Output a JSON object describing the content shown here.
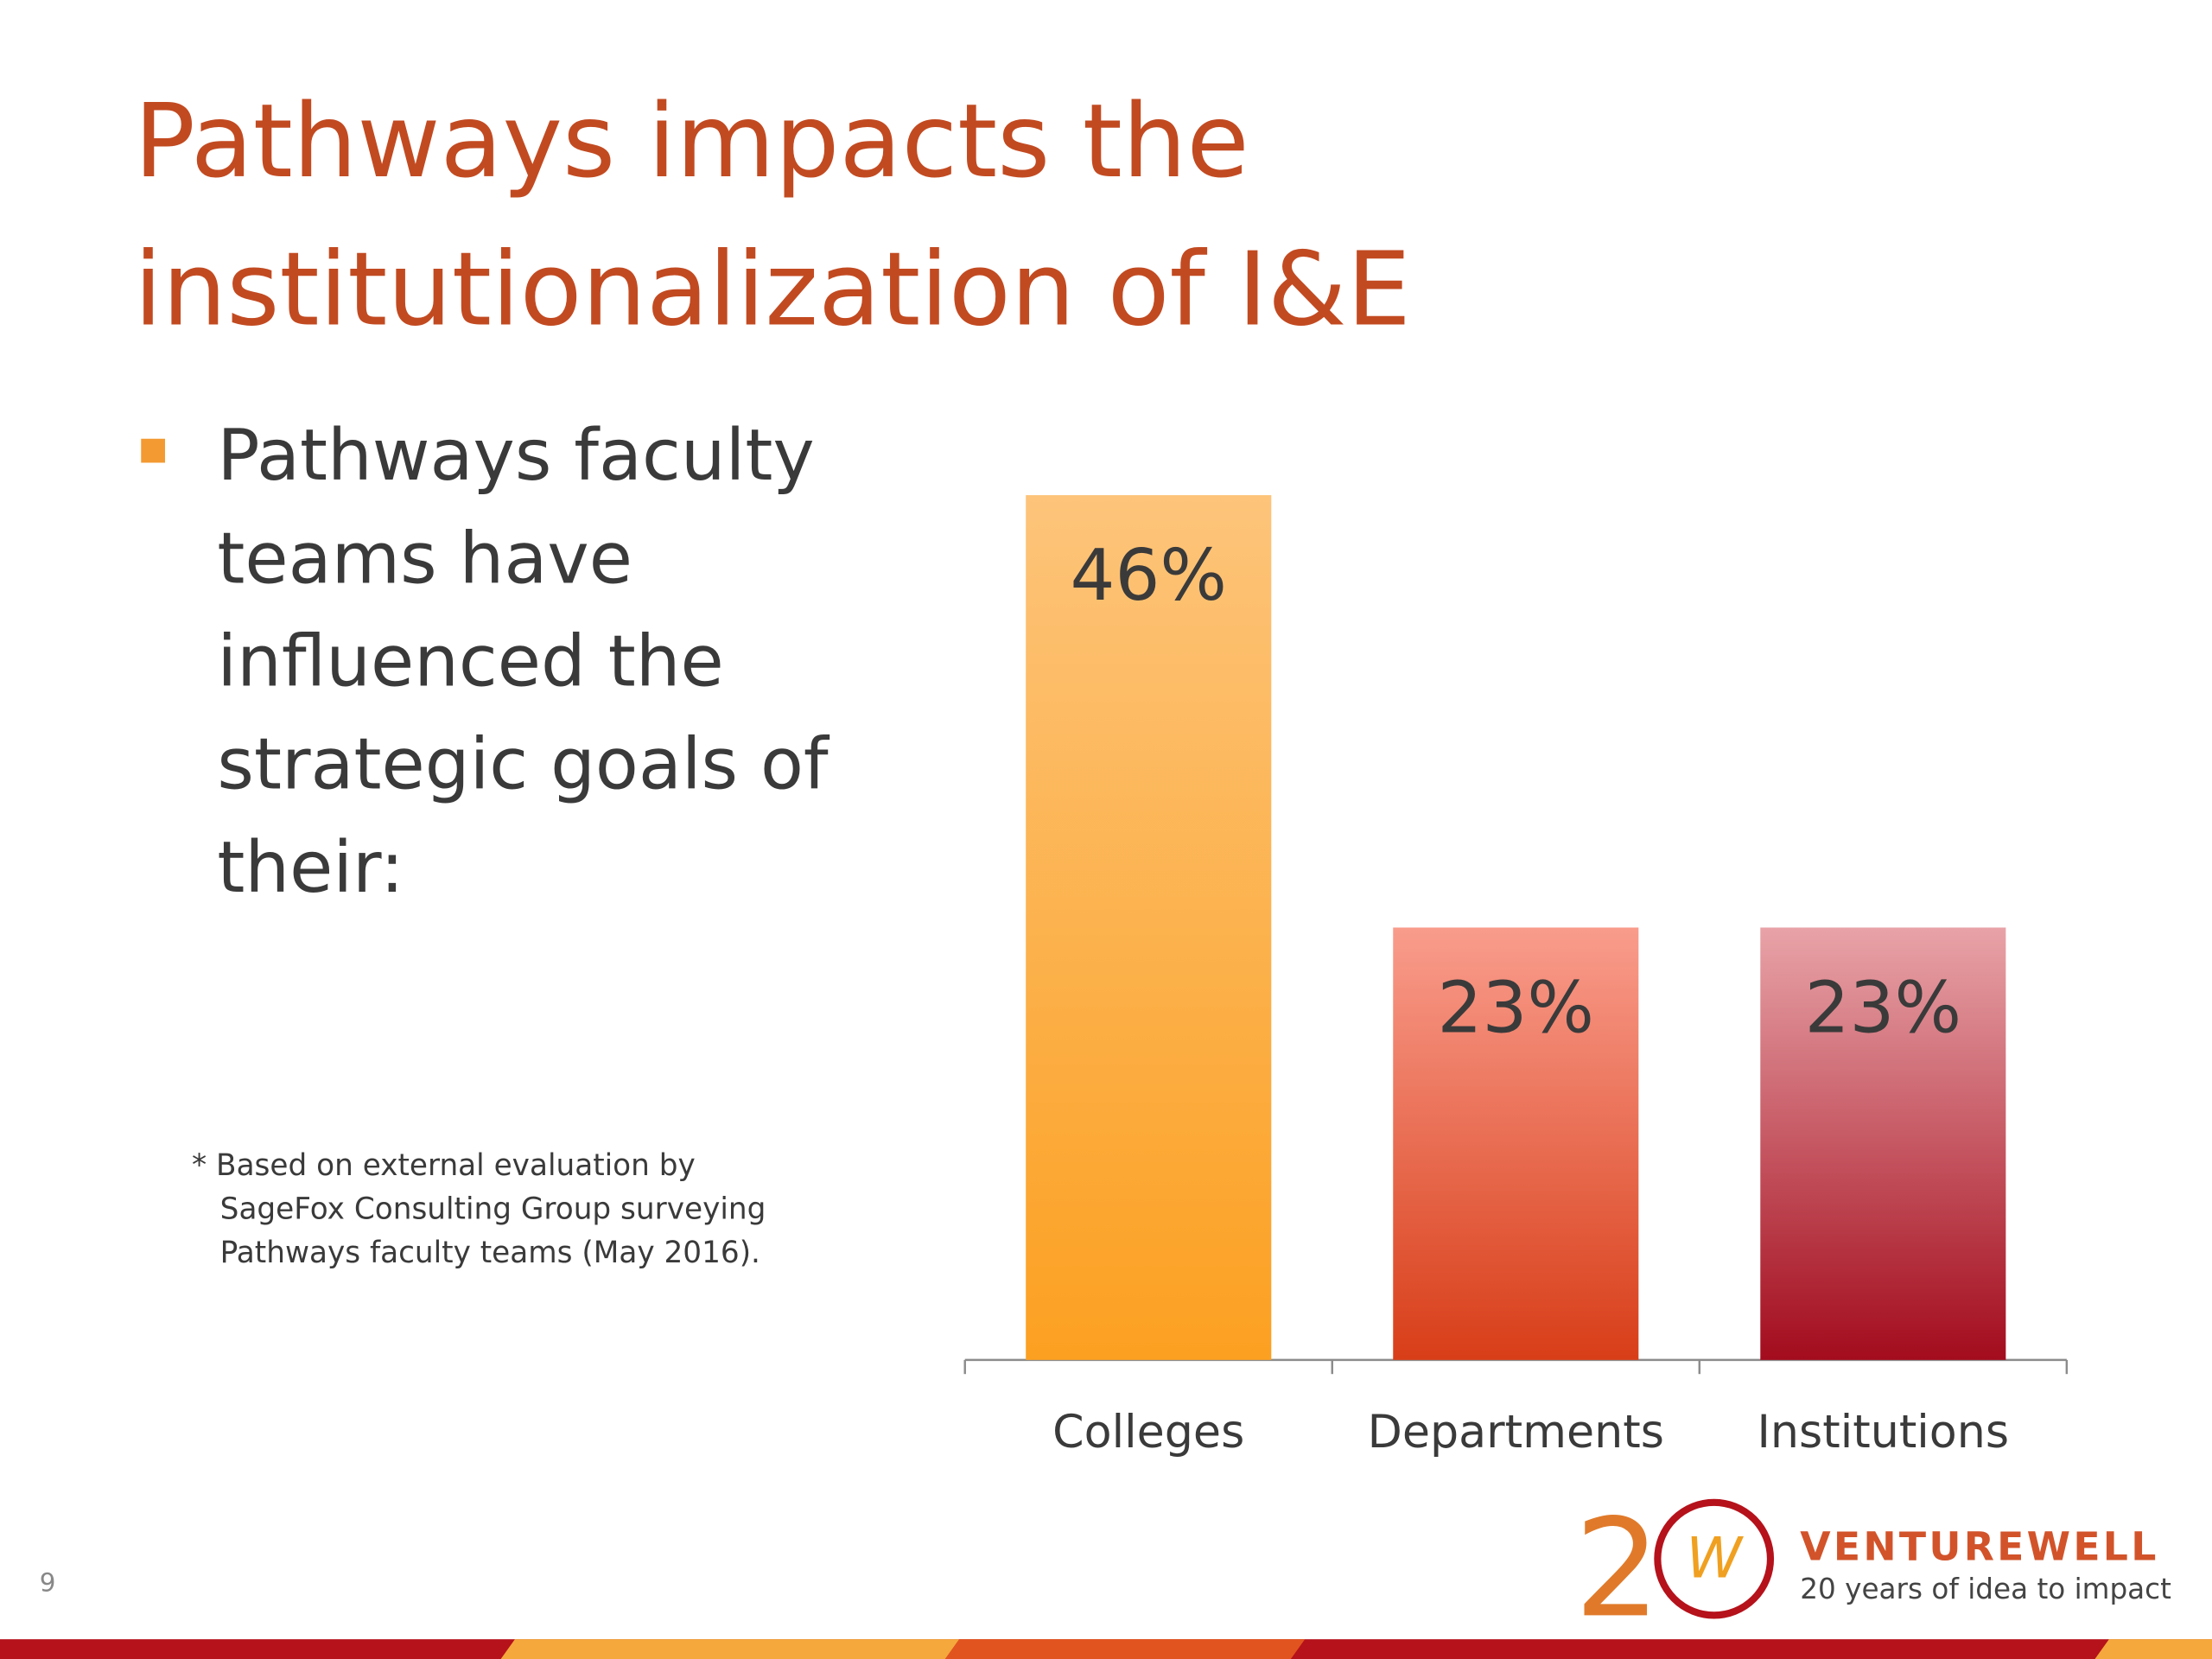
{
  "title": [
    "Pathways impacts the",
    "institutionalization of I&E"
  ],
  "bullet": [
    "Pathways faculty",
    "teams have",
    "influenced the",
    "strategic goals of",
    "their:"
  ],
  "footnote": [
    "* Based on external evaluation by",
    "SageFox Consulting Group surveying",
    "Pathways faculty teams (May 2016)."
  ],
  "page_number": "9",
  "logo": {
    "mark": [
      "2",
      "W"
    ],
    "name": "VENTUREWELL",
    "tagline": "20 years of idea to impact"
  },
  "chart_data": {
    "type": "bar",
    "categories": [
      "Colleges",
      "Departments",
      "Institutions"
    ],
    "values": [
      46,
      23,
      23
    ],
    "value_labels": [
      "46%",
      "23%",
      "23%"
    ],
    "colors": [
      [
        "#fdc47a",
        "#fca021"
      ],
      [
        "#f99c8c",
        "#d83e18"
      ],
      [
        "#e8a3a8",
        "#a30c1d"
      ]
    ]
  }
}
